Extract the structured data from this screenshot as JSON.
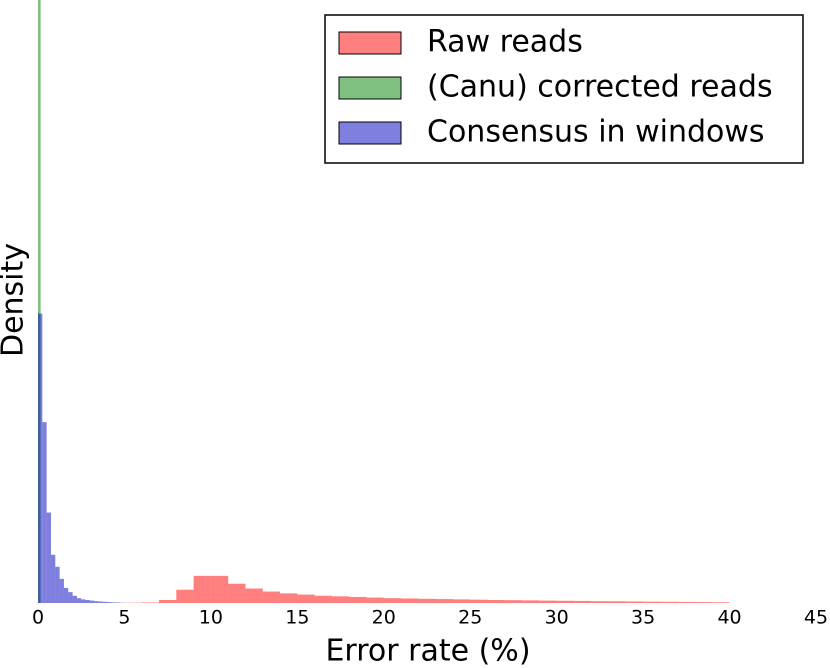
{
  "chart_data": {
    "type": "histogram",
    "xlabel": "Error rate (%)",
    "ylabel": "Density",
    "xlim": [
      0,
      45
    ],
    "xticks": [
      0,
      5,
      10,
      15,
      20,
      25,
      30,
      35,
      40,
      45
    ],
    "ylim": [
      0,
      1
    ],
    "legend": "upper right",
    "series": [
      {
        "name": "Raw reads",
        "color": "#ff0000",
        "bins": [
          5,
          6,
          7,
          8,
          9,
          10,
          11,
          12,
          13,
          14,
          15,
          16,
          17,
          18,
          19,
          20,
          21,
          22,
          23,
          24,
          25,
          26,
          27,
          28,
          29,
          30,
          31,
          32,
          33,
          34,
          35,
          36,
          37,
          38,
          39,
          40
        ],
        "values": [
          0.0005,
          0.001,
          0.005,
          0.022,
          0.045,
          0.045,
          0.032,
          0.024,
          0.019,
          0.016,
          0.014,
          0.012,
          0.011,
          0.01,
          0.009,
          0.008,
          0.0075,
          0.007,
          0.0065,
          0.006,
          0.0055,
          0.005,
          0.0047,
          0.0044,
          0.004,
          0.0037,
          0.0034,
          0.003,
          0.0028,
          0.0025,
          0.0022,
          0.002,
          0.0017,
          0.0015,
          0.0012
        ]
      },
      {
        "name": "(Canu) corrected reads",
        "color": "#008000",
        "bins": [
          0,
          0.15
        ],
        "values": [
          1
        ]
      },
      {
        "name": "Consensus in windows",
        "color": "#0000bf",
        "bins": [
          0,
          0.25,
          0.5,
          0.75,
          1,
          1.25,
          1.5,
          1.75,
          2,
          2.25,
          2.5,
          2.75,
          3,
          3.25,
          3.5,
          3.75,
          4,
          4.25,
          4.5,
          4.75,
          5
        ],
        "values": [
          0.48,
          0.3,
          0.15,
          0.08,
          0.06,
          0.04,
          0.025,
          0.018,
          0.012,
          0.008,
          0.006,
          0.005,
          0.004,
          0.003,
          0.0025,
          0.002,
          0.0015,
          0.001,
          0.0008,
          0.0005
        ]
      }
    ]
  }
}
